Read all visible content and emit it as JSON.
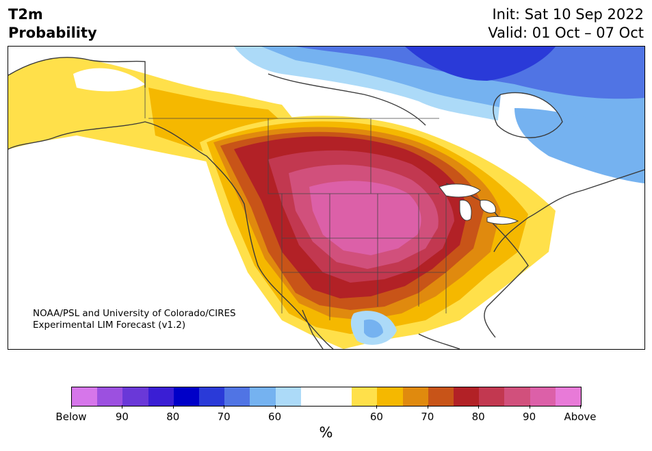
{
  "header": {
    "title_line1": "T2m",
    "title_line2": "Probability",
    "init_label": "Init: Sat 10 Sep 2022",
    "valid_label": "Valid: 01 Oct – 07 Oct"
  },
  "map": {
    "credit_line1": "NOAA/PSL and University of Colorado/CIRES",
    "credit_line2": "Experimental LIM Forecast (v1.2)",
    "region": "North America",
    "colors": {
      "above_60": "#ffe04a",
      "above_65": "#f5b800",
      "above_70": "#e08a0e",
      "above_75": "#c85418",
      "above_80": "#b22126",
      "above_85": "#c23850",
      "above_90": "#d1507c",
      "above_95": "#dc60a8",
      "above_max": "#e87ad8",
      "below_60": "#acdaf8",
      "below_65": "#75b2f0",
      "below_70": "#5074e4",
      "below_75": "#2a3ad8",
      "below_80": "#0000c8",
      "below_85": "#3a1ed4",
      "below_90": "#6a38d8",
      "below_95": "#9c50e0",
      "below_max": "#d676ea"
    }
  },
  "colorbar": {
    "colors": [
      "#d676ea",
      "#9c50e0",
      "#6a38d8",
      "#3a1ed4",
      "#0000c8",
      "#2a3ad8",
      "#5074e4",
      "#75b2f0",
      "#acdaf8",
      "#ffffff",
      "#ffffff",
      "#ffe04a",
      "#f5b800",
      "#e08a0e",
      "#c85418",
      "#b22126",
      "#c23850",
      "#d1507c",
      "#dc60a8",
      "#e87ad8"
    ],
    "tick_labels": [
      "Below",
      "90",
      "80",
      "70",
      "60",
      "60",
      "70",
      "80",
      "90",
      "Above"
    ],
    "unit": "%"
  }
}
